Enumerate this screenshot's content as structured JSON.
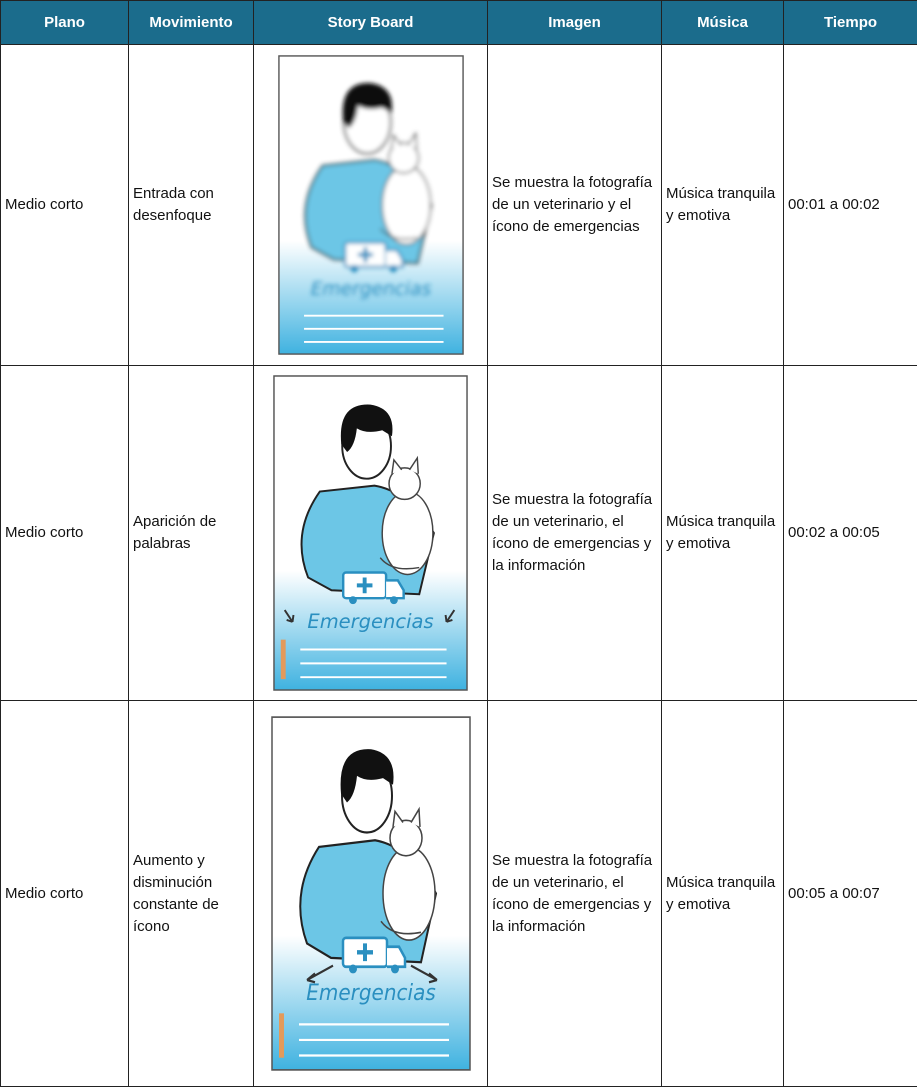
{
  "table": {
    "header": [
      "Plano",
      "Movimiento",
      "Story Board",
      "Imagen",
      "Música",
      "Tiempo"
    ],
    "rows": [
      {
        "plano": "Medio corto",
        "movimiento": "Entrada con desenfoque",
        "storyboard": "Emergencias",
        "imagen": "Se muestra la fotografía de un veterinario y el ícono de emergencias",
        "musica": "Música tranquila y emotiva",
        "tiempo": "00:01 a 00:02"
      },
      {
        "plano": "Medio corto",
        "movimiento": "Aparición de palabras",
        "storyboard": "Emergencias",
        "imagen": "Se muestra la fotografía de un veterinario, el ícono de emergencias y la información",
        "musica": "Música tranquila y emotiva",
        "tiempo": "00:02 a 00:05"
      },
      {
        "plano": "Medio corto",
        "movimiento": "Aumento y disminución constante de ícono",
        "storyboard": "Emergencias",
        "imagen": "Se muestra la fotografía de un veterinario, el ícono de emergencias y la información",
        "musica": "Música tranquila y emotiva",
        "tiempo": "00:05 a 00:07"
      }
    ]
  }
}
